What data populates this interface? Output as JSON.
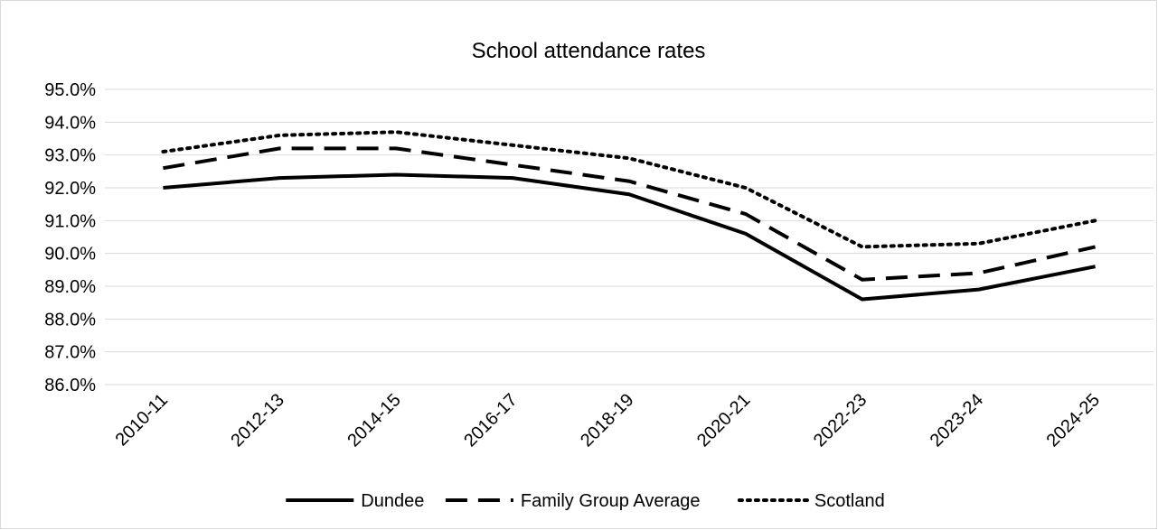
{
  "chart_data": {
    "type": "line",
    "title": "School attendance rates",
    "xlabel": "",
    "ylabel": "",
    "categories": [
      "2010-11",
      "2012-13",
      "2014-15",
      "2016-17",
      "2018-19",
      "2020-21",
      "2022-23",
      "2023-24",
      "2024-25"
    ],
    "ylim": [
      86.0,
      95.0
    ],
    "yticks": [
      "95.0%",
      "94.0%",
      "93.0%",
      "92.0%",
      "91.0%",
      "90.0%",
      "89.0%",
      "88.0%",
      "87.0%",
      "86.0%"
    ],
    "grid": true,
    "legend_position": "bottom",
    "series": [
      {
        "name": "Dundee",
        "style": "solid",
        "color": "#000000",
        "values": [
          92.0,
          92.3,
          92.4,
          92.3,
          91.8,
          90.6,
          88.6,
          88.9,
          89.6
        ]
      },
      {
        "name": "Family Group Average",
        "style": "dashed",
        "color": "#000000",
        "values": [
          92.6,
          93.2,
          93.2,
          92.7,
          92.2,
          91.2,
          89.2,
          89.4,
          90.2
        ]
      },
      {
        "name": "Scotland",
        "style": "dotted",
        "color": "#000000",
        "values": [
          93.1,
          93.6,
          93.7,
          93.3,
          92.9,
          92.0,
          90.2,
          90.3,
          91.0
        ]
      }
    ]
  }
}
